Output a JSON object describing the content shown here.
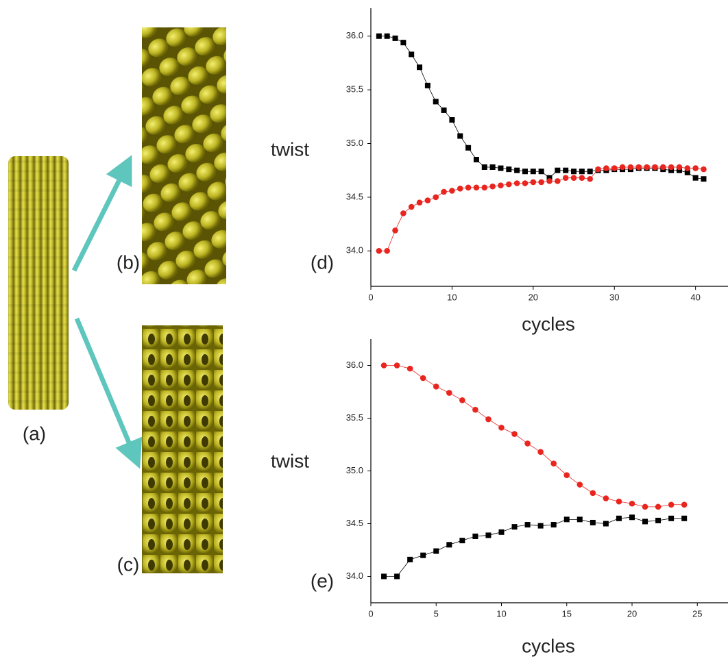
{
  "figure_labels": [
    "(a)",
    "(b)",
    "(c)"
  ],
  "chart_data": [
    {
      "type": "scatter-line",
      "annotation": "(d)",
      "xlabel": "cycles",
      "ylabel": "twist",
      "xlim": [
        0,
        44
      ],
      "xticks": [
        0,
        10,
        20,
        30,
        40
      ],
      "ylim": [
        33.67,
        36.26
      ],
      "yticks": [
        {
          "value": 34,
          "label": "34.0"
        },
        {
          "value": 34.5,
          "label": "34.5"
        },
        {
          "value": 35,
          "label": "35.0"
        },
        {
          "value": 35.5,
          "label": "35.5"
        },
        {
          "value": 36,
          "label": "36.0"
        }
      ],
      "x": [
        1,
        2,
        3,
        4,
        5,
        6,
        7,
        8,
        9,
        10,
        11,
        12,
        13,
        14,
        15,
        16,
        17,
        18,
        19,
        20,
        21,
        22,
        23,
        24,
        25,
        26,
        27,
        28,
        29,
        30,
        31,
        32,
        33,
        34,
        35,
        36,
        37,
        38,
        39,
        40,
        41
      ],
      "series": [
        {
          "color": "#000000",
          "marker": "square",
          "values": [
            36.0,
            36.0,
            35.98,
            35.94,
            35.83,
            35.71,
            35.54,
            35.39,
            35.31,
            35.22,
            35.07,
            34.96,
            34.85,
            34.78,
            34.78,
            34.77,
            34.76,
            34.75,
            34.74,
            34.74,
            34.74,
            34.68,
            34.75,
            34.75,
            34.74,
            34.74,
            34.74,
            34.75,
            34.75,
            34.76,
            34.76,
            34.76,
            34.77,
            34.77,
            34.77,
            34.76,
            34.75,
            34.75,
            34.73,
            34.68,
            34.67
          ]
        },
        {
          "color": "#e8261f",
          "marker": "circle",
          "values": [
            34.0,
            34.0,
            34.19,
            34.35,
            34.41,
            34.45,
            34.47,
            34.5,
            34.55,
            34.56,
            34.58,
            34.59,
            34.59,
            34.59,
            34.6,
            34.61,
            34.62,
            34.63,
            34.63,
            34.64,
            34.64,
            34.65,
            34.65,
            34.68,
            34.68,
            34.68,
            34.67,
            34.76,
            34.77,
            34.77,
            34.78,
            34.78,
            34.78,
            34.78,
            34.78,
            34.78,
            34.78,
            34.78,
            34.77,
            34.77,
            34.76
          ]
        }
      ]
    },
    {
      "type": "scatter-line",
      "annotation": "(e)",
      "xlabel": "cycles",
      "ylabel": "twist",
      "xlim": [
        0,
        27.35
      ],
      "xticks": [
        0,
        5,
        10,
        15,
        20,
        25
      ],
      "ylim": [
        33.75,
        36.25
      ],
      "yticks": [
        {
          "value": 34,
          "label": "34.0"
        },
        {
          "value": 34.5,
          "label": "34.5"
        },
        {
          "value": 35,
          "label": "35.0"
        },
        {
          "value": 35.5,
          "label": "35.5"
        },
        {
          "value": 36,
          "label": "36.0"
        }
      ],
      "x": [
        1,
        2,
        3,
        4,
        5,
        6,
        7,
        8,
        9,
        10,
        11,
        12,
        13,
        14,
        15,
        16,
        17,
        18,
        19,
        20,
        21,
        22,
        23,
        24
      ],
      "series": [
        {
          "color": "#e8261f",
          "marker": "circle",
          "values": [
            36.0,
            36.0,
            35.97,
            35.88,
            35.8,
            35.74,
            35.67,
            35.58,
            35.49,
            35.41,
            35.35,
            35.26,
            35.18,
            35.07,
            34.96,
            34.87,
            34.79,
            34.74,
            34.71,
            34.69,
            34.66,
            34.66,
            34.68,
            34.68
          ]
        },
        {
          "color": "#000000",
          "marker": "square",
          "values": [
            34.0,
            34.0,
            34.16,
            34.2,
            34.24,
            34.3,
            34.34,
            34.38,
            34.39,
            34.42,
            34.47,
            34.49,
            34.48,
            34.49,
            34.54,
            34.54,
            34.51,
            34.5,
            34.55,
            34.56,
            34.52,
            34.53,
            34.55,
            34.55
          ]
        }
      ]
    }
  ]
}
